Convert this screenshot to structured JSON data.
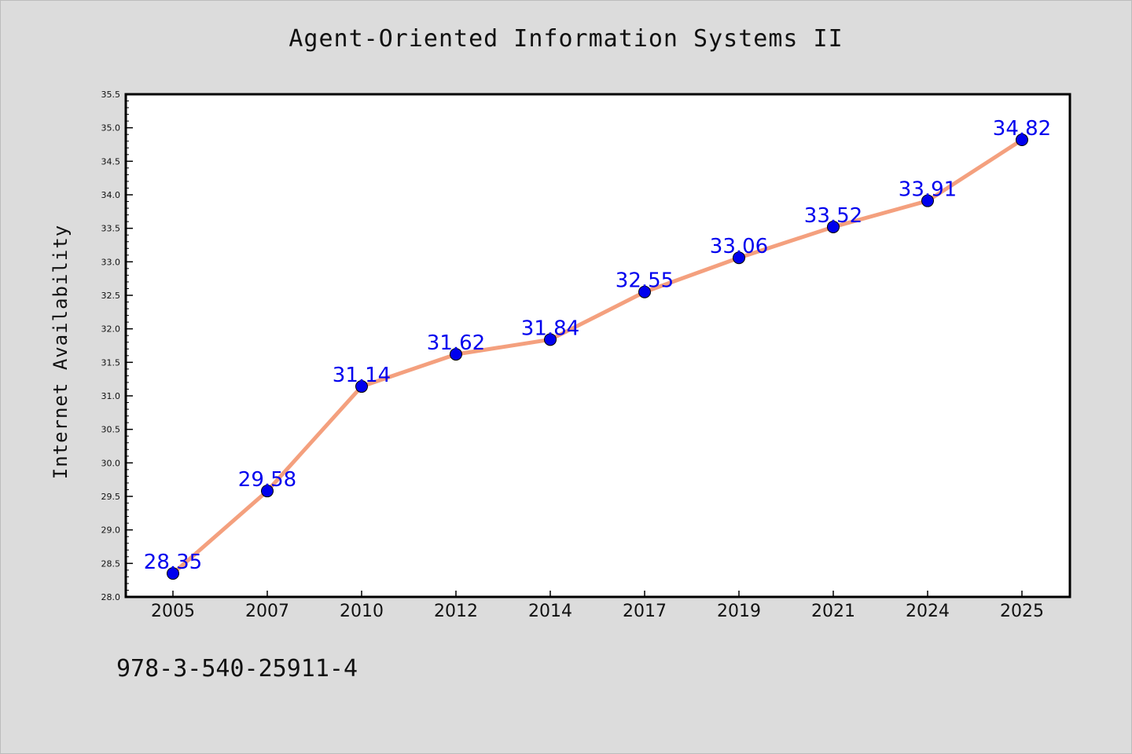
{
  "chart_data": {
    "type": "line",
    "title": "Agent-Oriented Information Systems II",
    "xlabel": "",
    "ylabel": "Internet Availability",
    "categories": [
      "2005",
      "2007",
      "2010",
      "2012",
      "2014",
      "2017",
      "2019",
      "2021",
      "2024",
      "2025"
    ],
    "series": [
      {
        "values": [
          28.35,
          29.58,
          31.14,
          31.62,
          31.84,
          32.55,
          33.06,
          33.52,
          33.91,
          34.82
        ],
        "labels": [
          "28.35",
          "29.58",
          "31.14",
          "31.62",
          "31.84",
          "32.55",
          "33.06",
          "33.52",
          "33.91",
          "34.82"
        ]
      }
    ],
    "ylim": [
      28.0,
      35.5
    ],
    "yticks": [
      "28.0",
      "28.5",
      "29.0",
      "29.5",
      "30.0",
      "30.5",
      "31.0",
      "31.5",
      "32.0",
      "32.5",
      "33.0",
      "33.5",
      "34.0",
      "34.5",
      "35.0",
      "35.5"
    ],
    "grid": false,
    "legend": "none",
    "colors": {
      "line": "#f4a07e",
      "marker": "#0000ee",
      "label": "#0000ee",
      "page_background": "#dcdcdc",
      "plot_background": "#ffffff"
    }
  },
  "footer": {
    "identifier": "978-3-540-25911-4"
  }
}
